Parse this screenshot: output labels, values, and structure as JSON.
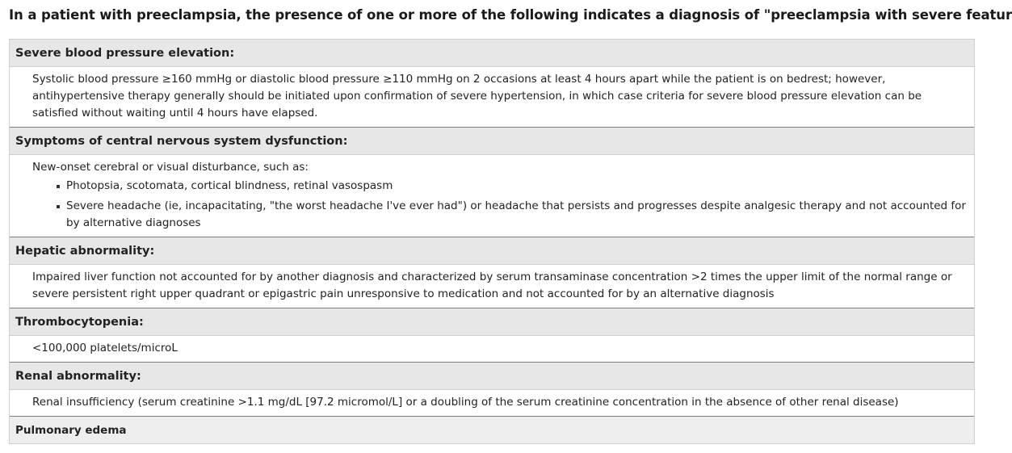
{
  "title": "In a patient with preeclampsia, the presence of one or more of the following indicates a diagnosis of \"preeclampsia with severe features\"",
  "sections": [
    {
      "heading": "Severe blood pressure elevation:",
      "text": "Systolic blood pressure ≥160 mmHg or diastolic blood pressure ≥110 mmHg on 2 occasions at least 4 hours apart while the patient is on bedrest; however, antihypertensive therapy generally should be initiated upon confirmation of severe hypertension, in which case criteria for severe blood pressure elevation can be satisfied without waiting until 4 hours have elapsed."
    },
    {
      "heading": "Symptoms of central nervous system dysfunction:",
      "text": "New-onset cerebral or visual disturbance, such as:",
      "bullets": [
        "Photopsia, scotomata, cortical blindness, retinal vasospasm",
        "Severe headache (ie, incapacitating, \"the worst headache I've ever had\") or headache that persists and progresses despite analgesic therapy and not accounted for by alternative diagnoses"
      ]
    },
    {
      "heading": "Hepatic abnormality:",
      "text": "Impaired liver function not accounted for by another diagnosis and characterized by serum transaminase concentration >2 times the upper limit of the normal range or severe persistent right upper quadrant or epigastric pain unresponsive to medication and not accounted for by an alternative diagnosis"
    },
    {
      "heading": "Thrombocytopenia:",
      "text": "<100,000 platelets/microL"
    },
    {
      "heading": "Renal abnormality:",
      "text": "Renal insufficiency (serum creatinine >1.1 mg/dL [97.2 micromol/L] or a doubling of the serum creatinine concentration in the absence of other renal disease)"
    }
  ],
  "final_heading": "Pulmonary edema"
}
